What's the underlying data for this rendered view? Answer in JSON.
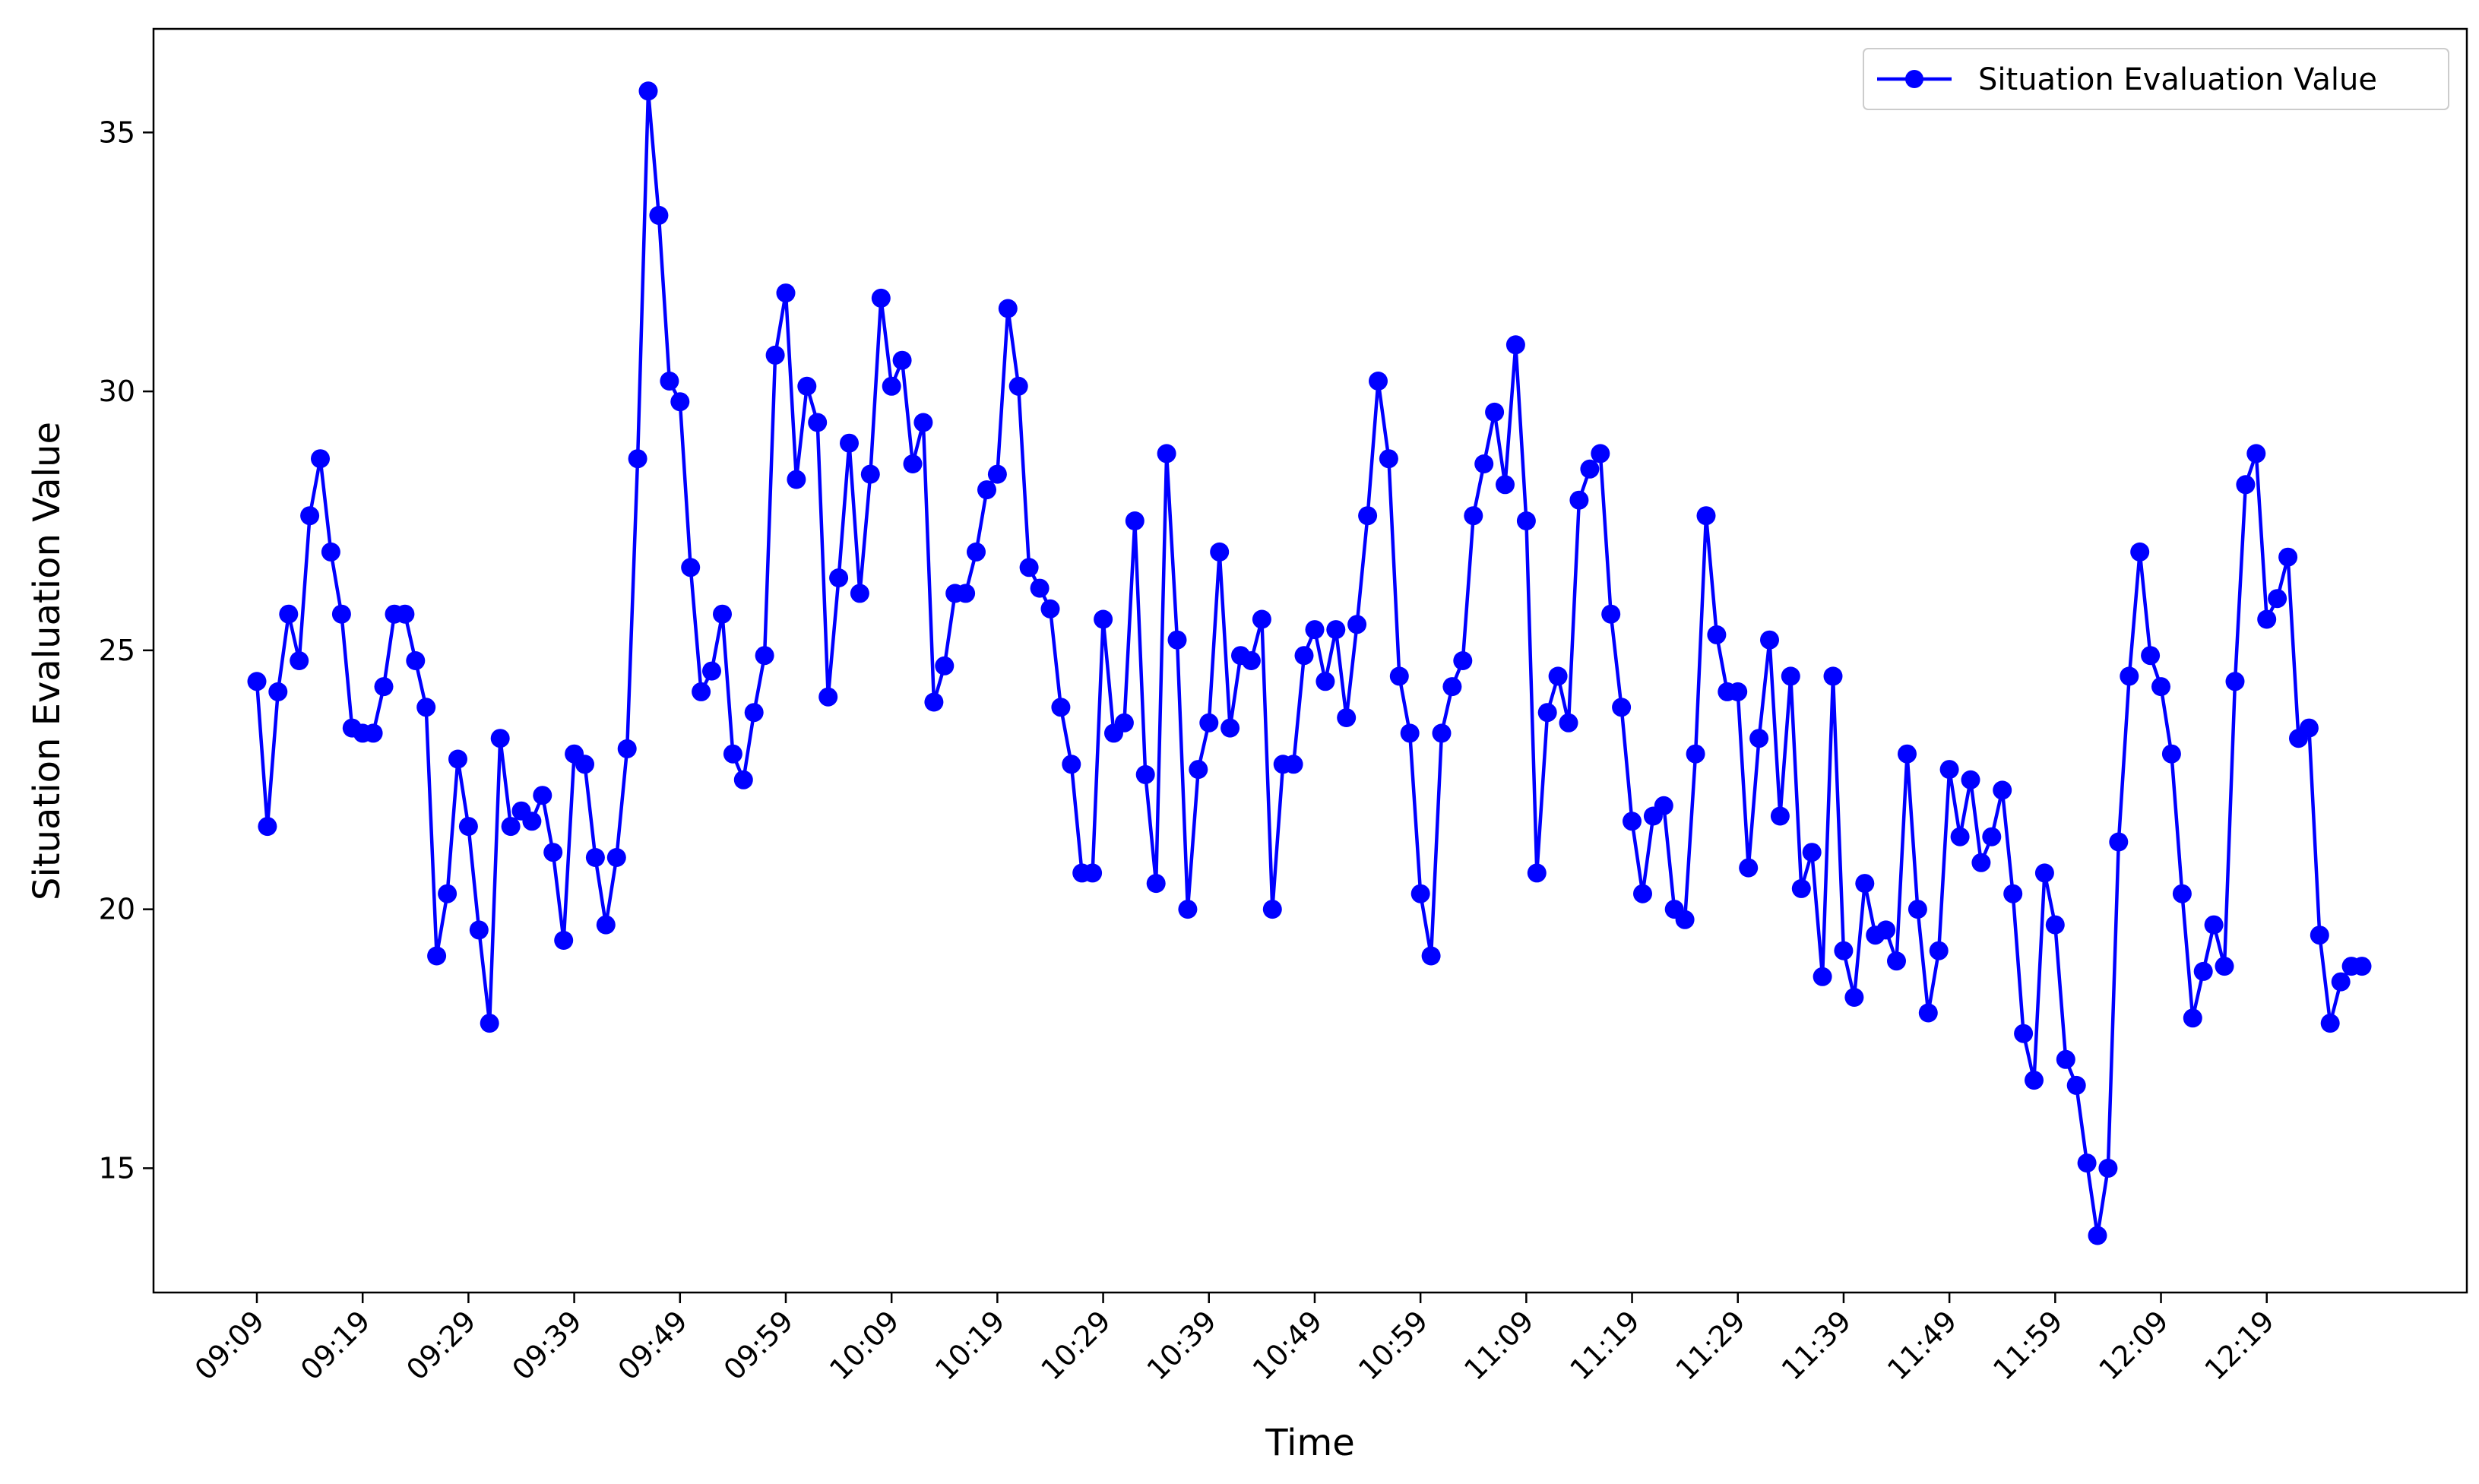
{
  "chart_data": {
    "type": "line",
    "title": "",
    "xlabel": "Time",
    "ylabel": "Situation Evaluation Value",
    "x_tick_labels": [
      "09:09",
      "09:19",
      "09:29",
      "09:39",
      "09:49",
      "09:59",
      "10:09",
      "10:19",
      "10:29",
      "10:39",
      "10:49",
      "10:59",
      "11:09",
      "11:19",
      "11:29",
      "11:39",
      "11:49",
      "11:59",
      "12:09",
      "12:19"
    ],
    "y_ticks": [
      15,
      20,
      25,
      30,
      35
    ],
    "ylim": [
      12.6,
      37.0
    ],
    "grid": false,
    "legend_position": "top-right",
    "series": [
      {
        "name": "Situation Evaluation Value",
        "color": "#0000ff",
        "marker": "circle",
        "values": [
          24.4,
          21.6,
          24.2,
          25.7,
          24.8,
          27.6,
          28.7,
          26.9,
          25.7,
          23.5,
          23.4,
          23.4,
          24.3,
          25.7,
          25.7,
          24.8,
          23.9,
          19.1,
          20.3,
          22.9,
          21.6,
          19.6,
          17.8,
          23.3,
          21.6,
          21.9,
          21.7,
          22.2,
          21.1,
          19.4,
          23.0,
          22.8,
          21.0,
          19.7,
          21.0,
          23.1,
          28.7,
          35.8,
          33.4,
          30.2,
          29.8,
          26.6,
          24.2,
          24.6,
          25.7,
          23.0,
          22.5,
          23.8,
          24.9,
          30.7,
          31.9,
          28.3,
          30.1,
          29.4,
          24.1,
          26.4,
          29.0,
          26.1,
          28.4,
          31.8,
          30.1,
          30.6,
          28.6,
          29.4,
          24.0,
          24.7,
          26.1,
          26.1,
          26.9,
          28.1,
          28.4,
          31.6,
          30.1,
          26.6,
          26.2,
          25.8,
          23.9,
          22.8,
          20.7,
          20.7,
          25.6,
          23.4,
          23.6,
          27.5,
          22.6,
          20.5,
          28.8,
          25.2,
          20.0,
          22.7,
          23.6,
          26.9,
          23.5,
          24.9,
          24.8,
          25.6,
          20.0,
          22.8,
          22.8,
          24.9,
          25.4,
          24.4,
          25.4,
          23.7,
          25.5,
          27.6,
          30.2,
          28.7,
          24.5,
          23.4,
          20.3,
          19.1,
          23.4,
          24.3,
          24.8,
          27.6,
          28.6,
          29.6,
          28.2,
          30.9,
          27.5,
          20.7,
          23.8,
          24.5,
          23.6,
          27.9,
          28.5,
          28.8,
          25.7,
          23.9,
          21.7,
          20.3,
          21.8,
          22.0,
          20.0,
          19.8,
          23.0,
          27.6,
          25.3,
          24.2,
          24.2,
          20.8,
          23.3,
          25.2,
          21.8,
          24.5,
          20.4,
          21.1,
          18.7,
          24.5,
          19.2,
          18.3,
          20.5,
          19.5,
          19.6,
          19.0,
          23.0,
          20.0,
          18.0,
          19.2,
          22.7,
          21.4,
          22.5,
          20.9,
          21.4,
          22.3,
          20.3,
          17.6,
          16.7,
          20.7,
          19.7,
          17.1,
          16.6,
          15.1,
          13.7,
          15.0,
          21.3,
          24.5,
          26.9,
          24.9,
          24.3,
          23.0,
          20.3,
          17.9,
          18.8,
          19.7,
          18.9,
          24.4,
          28.2,
          28.8,
          25.6,
          26.0,
          26.8,
          23.3,
          23.5,
          19.5,
          17.8,
          18.6,
          18.9,
          18.9
        ]
      }
    ]
  }
}
